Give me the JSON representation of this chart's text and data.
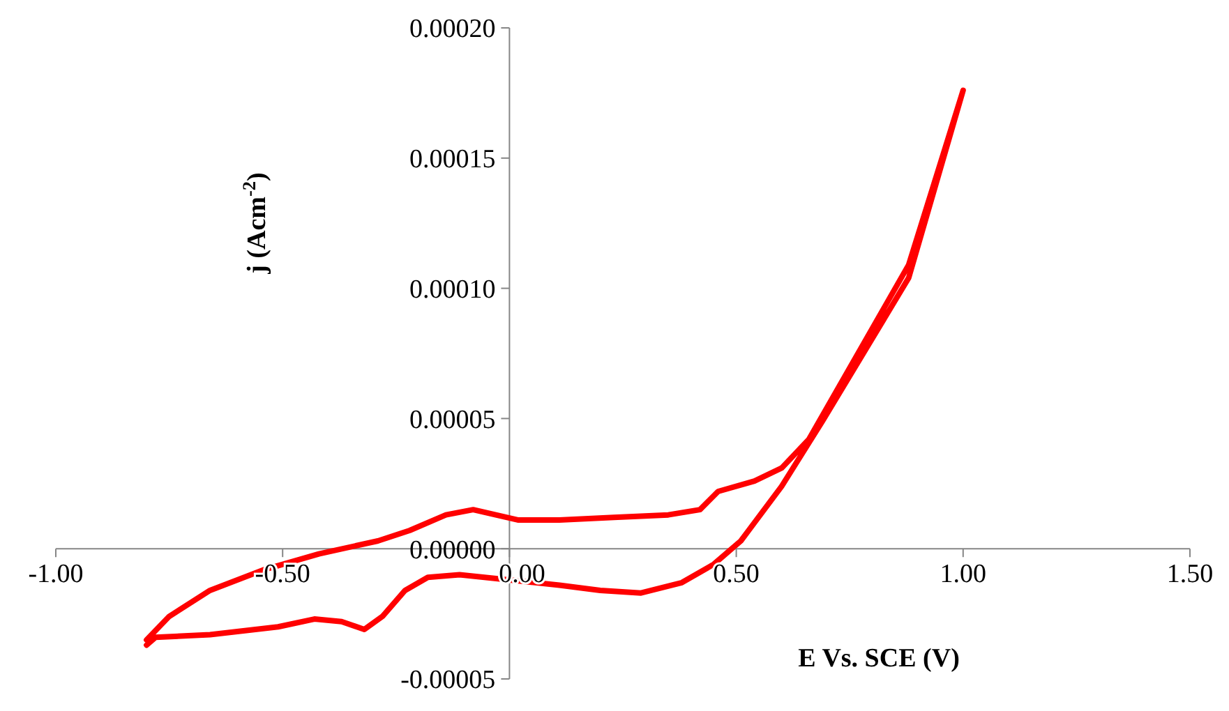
{
  "chart_data": {
    "type": "line",
    "xlabel": "E Vs. SCE (V)",
    "ylabel": "j (Acm$^{-2}$)",
    "x": [
      -0.8,
      -0.78,
      -0.66,
      -0.51,
      -0.43,
      -0.37,
      -0.32,
      -0.28,
      -0.23,
      -0.18,
      -0.11,
      0.0,
      0.11,
      0.2,
      0.29,
      0.38,
      0.45,
      0.51,
      0.6,
      0.69,
      0.78,
      0.88,
      1.0,
      0.88,
      0.66,
      0.6,
      0.54,
      0.46,
      0.42,
      0.35,
      0.23,
      0.11,
      0.02,
      -0.03,
      -0.08,
      -0.14,
      -0.22,
      -0.29,
      -0.42,
      -0.54,
      -0.66,
      -0.75,
      -0.8
    ],
    "series": [
      {
        "color": "#ff0000",
        "values": [
          -3.7e-05,
          -3.4e-05,
          -3.3e-05,
          -3e-05,
          -2.7e-05,
          -2.8e-05,
          -3.1e-05,
          -2.6e-05,
          -1.6e-05,
          -1.1e-05,
          -1e-05,
          -1.2e-05,
          -1.4e-05,
          -1.6e-05,
          -1.7e-05,
          -1.3e-05,
          -6e-06,
          3e-06,
          2.4e-05,
          4.9e-05,
          7.5e-05,
          0.000104,
          0.000176,
          0.000109,
          4.2e-05,
          3.1e-05,
          2.6e-05,
          2.2e-05,
          1.5e-05,
          1.3e-05,
          1.2e-05,
          1.1e-05,
          1.1e-05,
          1.3e-05,
          1.5e-05,
          1.3e-05,
          7e-06,
          3e-06,
          -2e-06,
          -8e-06,
          -1.6e-05,
          -2.6e-05,
          -3.5e-05
        ]
      }
    ],
    "xlim": [
      -1,
      1.5
    ],
    "ylim": [
      -5e-05,
      0.0002
    ],
    "xticks": [
      {
        "value": -1,
        "label": "-1.00"
      },
      {
        "value": -0.5,
        "label": "-0.50"
      },
      {
        "value": 0,
        "label": "0.00"
      },
      {
        "value": 0.5,
        "label": "0.50"
      },
      {
        "value": 1,
        "label": "1.00"
      },
      {
        "value": 1.5,
        "label": "1.50"
      }
    ],
    "yticks": [
      {
        "value": -5e-05,
        "label": "-0.00005"
      },
      {
        "value": 0,
        "label": "0.00000"
      },
      {
        "value": 5e-05,
        "label": "0.00005"
      },
      {
        "value": 0.0001,
        "label": "0.00010"
      },
      {
        "value": 0.00015,
        "label": "0.00015"
      },
      {
        "value": 0.0002,
        "label": "0.00020"
      }
    ]
  }
}
